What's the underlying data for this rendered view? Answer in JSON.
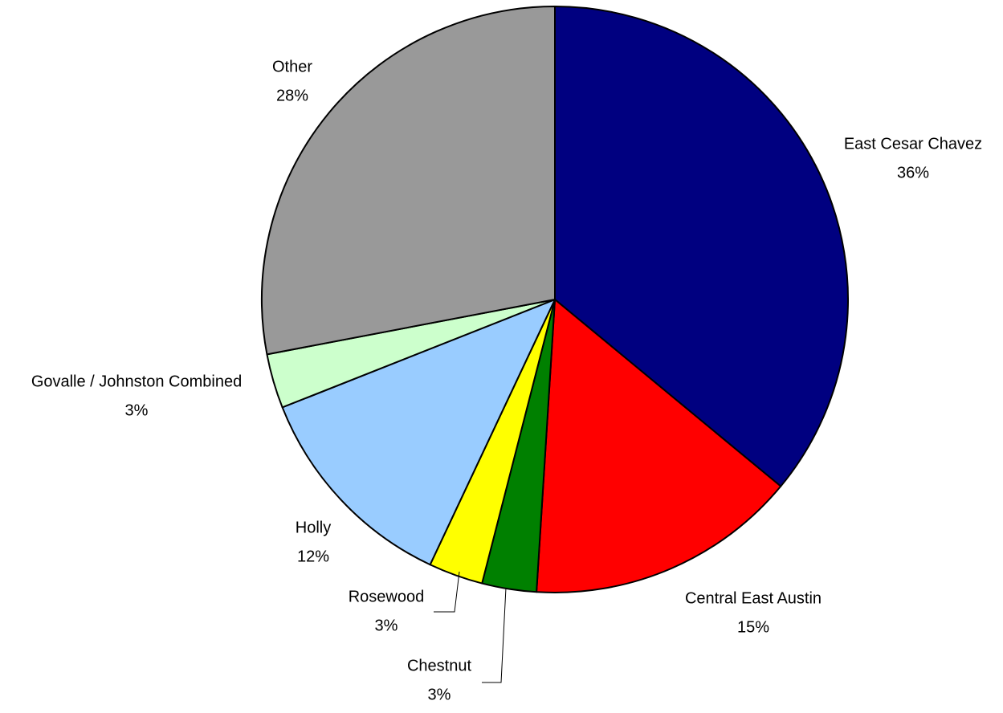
{
  "chart_data": {
    "type": "pie",
    "categories": [
      "East Cesar Chavez",
      "Central East Austin",
      "Chestnut",
      "Rosewood",
      "Holly",
      "Govalle / Johnston Combined",
      "Other"
    ],
    "values": [
      36,
      15,
      3,
      3,
      12,
      3,
      28
    ],
    "value_labels": [
      "36%",
      "15%",
      "3%",
      "3%",
      "12%",
      "3%",
      "28%"
    ],
    "colors": [
      "#000080",
      "#ff0000",
      "#008000",
      "#ffff00",
      "#99ccff",
      "#ccffcc",
      "#999999"
    ]
  }
}
